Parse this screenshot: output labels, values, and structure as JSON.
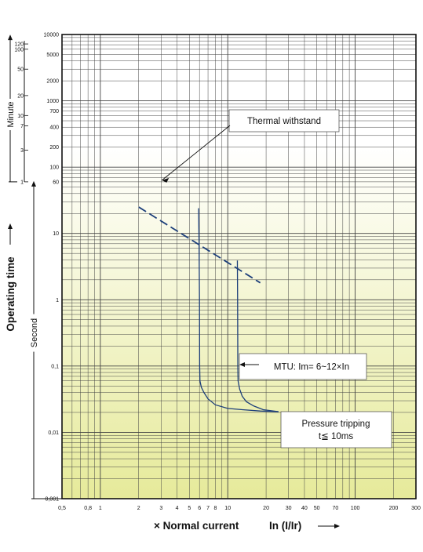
{
  "chart_data": {
    "type": "line",
    "title": "",
    "x_axis": {
      "scale": "log",
      "range": [
        0.5,
        300
      ],
      "title_prefix": "× Normal current",
      "title_suffix": "In (I/Ir)",
      "tick_labels": [
        {
          "v": 0.5,
          "t": "0,5"
        },
        {
          "v": 0.8,
          "t": "0,8"
        },
        {
          "v": 1,
          "t": "1"
        },
        {
          "v": 2,
          "t": "2"
        },
        {
          "v": 3,
          "t": "3"
        },
        {
          "v": 4,
          "t": "4"
        },
        {
          "v": 5,
          "t": "5"
        },
        {
          "v": 6,
          "t": "6"
        },
        {
          "v": 7,
          "t": "7"
        },
        {
          "v": 8,
          "t": "8"
        },
        {
          "v": 10,
          "t": "10"
        },
        {
          "v": 20,
          "t": "20"
        },
        {
          "v": 30,
          "t": "30"
        },
        {
          "v": 40,
          "t": "40"
        },
        {
          "v": 50,
          "t": "50"
        },
        {
          "v": 70,
          "t": "70"
        },
        {
          "v": 100,
          "t": "100"
        },
        {
          "v": 200,
          "t": "200"
        },
        {
          "v": 300,
          "t": "300"
        }
      ]
    },
    "y_axis": {
      "scale": "log",
      "range": [
        0.001,
        10000
      ],
      "title": "Operating time",
      "unit_seconds": "Second",
      "unit_minutes": "Minute",
      "second_ticks": [
        {
          "v": 10000,
          "t": "10000"
        },
        {
          "v": 5000,
          "t": "5000"
        },
        {
          "v": 2000,
          "t": "2000"
        },
        {
          "v": 1000,
          "t": "1000"
        },
        {
          "v": 700,
          "t": "700"
        },
        {
          "v": 400,
          "t": "400"
        },
        {
          "v": 200,
          "t": "200"
        },
        {
          "v": 100,
          "t": "100"
        },
        {
          "v": 60,
          "t": "60"
        },
        {
          "v": 10,
          "t": "10"
        },
        {
          "v": 1,
          "t": "1"
        },
        {
          "v": 0.1,
          "t": "0,1"
        },
        {
          "v": 0.01,
          "t": "0,01"
        },
        {
          "v": 0.001,
          "t": "0,001"
        }
      ],
      "minute_ticks": [
        {
          "v": 7200,
          "t": "120"
        },
        {
          "v": 6000,
          "t": "100"
        },
        {
          "v": 3000,
          "t": "50"
        },
        {
          "v": 1200,
          "t": "20"
        },
        {
          "v": 600,
          "t": "10"
        },
        {
          "v": 420,
          "t": "7"
        },
        {
          "v": 180,
          "t": "3"
        },
        {
          "v": 60,
          "t": "1"
        }
      ]
    },
    "series": [
      {
        "kind": "thermal-withstand",
        "style": "dashed",
        "color": "#1d3f7a",
        "points": [
          {
            "x": 2,
            "y": 25
          },
          {
            "x": 18,
            "y": 1.8
          }
        ]
      },
      {
        "kind": "trip-curve-lower",
        "style": "solid",
        "color": "#1d3f7a",
        "points": [
          {
            "x": 5.9,
            "y": 24
          },
          {
            "x": 5.95,
            "y": 8
          },
          {
            "x": 6.0,
            "y": 1
          },
          {
            "x": 6.02,
            "y": 0.1
          },
          {
            "x": 6.05,
            "y": 0.06
          },
          {
            "x": 6.2,
            "y": 0.048
          },
          {
            "x": 6.5,
            "y": 0.04
          },
          {
            "x": 7,
            "y": 0.032
          },
          {
            "x": 8,
            "y": 0.026
          },
          {
            "x": 10,
            "y": 0.023
          },
          {
            "x": 13,
            "y": 0.022
          },
          {
            "x": 18,
            "y": 0.021
          },
          {
            "x": 25,
            "y": 0.0205
          }
        ]
      },
      {
        "kind": "trip-curve-upper",
        "style": "solid",
        "color": "#1d3f7a",
        "points": [
          {
            "x": 11.9,
            "y": 3.9
          },
          {
            "x": 11.95,
            "y": 1
          },
          {
            "x": 12.0,
            "y": 0.1
          },
          {
            "x": 12.05,
            "y": 0.06
          },
          {
            "x": 12.4,
            "y": 0.045
          },
          {
            "x": 13,
            "y": 0.035
          },
          {
            "x": 14,
            "y": 0.029
          },
          {
            "x": 16,
            "y": 0.025
          },
          {
            "x": 19,
            "y": 0.022
          },
          {
            "x": 25,
            "y": 0.0205
          }
        ]
      }
    ],
    "annotations": [
      {
        "id": "thermal",
        "lines": [
          "Thermal withstand"
        ],
        "pointer_to": {
          "x": 3,
          "y": 60
        }
      },
      {
        "id": "mtu",
        "lines": [
          "MTU: Im= 6~12×In"
        ]
      },
      {
        "id": "pressure",
        "lines": [
          "Pressure tripping",
          "t≦ 10ms"
        ]
      }
    ],
    "grid": true,
    "colors": {
      "background_top": "#ffffff",
      "background_bottom": "#e6ea9a",
      "grid": "#444444",
      "frame": "#111111",
      "curve": "#1d3f7a"
    }
  }
}
